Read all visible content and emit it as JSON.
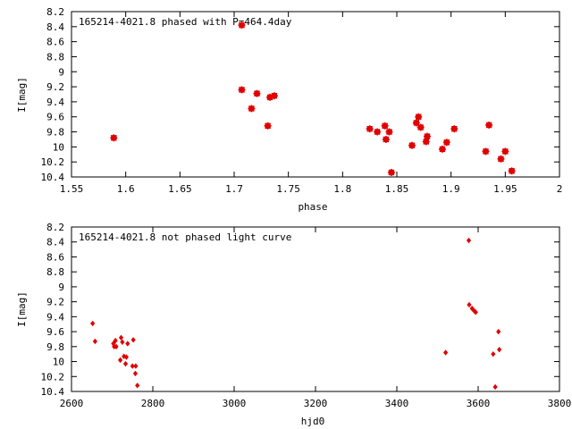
{
  "chart_data": [
    {
      "type": "scatter",
      "title": "165214-4021.8 phased with P=464.4day",
      "xlabel": "phase",
      "ylabel": "I[mag]",
      "xlim": [
        1.55,
        2.0
      ],
      "ylim": [
        10.4,
        8.2
      ],
      "y_inverted": true,
      "marker": "star",
      "color": "#e00000",
      "xticks": [
        "1.55",
        "1.6",
        "1.65",
        "1.7",
        "1.75",
        "1.8",
        "1.85",
        "1.9",
        "1.95",
        "2"
      ],
      "yticks": [
        "8.2",
        "8.4",
        "8.6",
        "8.8",
        "9",
        "9.2",
        "9.4",
        "9.6",
        "9.8",
        "10",
        "10.2",
        "10.4"
      ],
      "points": [
        {
          "x": 1.589,
          "y": 9.88
        },
        {
          "x": 1.707,
          "y": 8.38
        },
        {
          "x": 1.707,
          "y": 9.24
        },
        {
          "x": 1.716,
          "y": 9.49
        },
        {
          "x": 1.721,
          "y": 9.29
        },
        {
          "x": 1.731,
          "y": 9.72
        },
        {
          "x": 1.733,
          "y": 9.34
        },
        {
          "x": 1.737,
          "y": 9.32
        },
        {
          "x": 1.825,
          "y": 9.76
        },
        {
          "x": 1.832,
          "y": 9.8
        },
        {
          "x": 1.839,
          "y": 9.72
        },
        {
          "x": 1.84,
          "y": 9.9
        },
        {
          "x": 1.843,
          "y": 9.8
        },
        {
          "x": 1.845,
          "y": 10.34
        },
        {
          "x": 1.864,
          "y": 9.98
        },
        {
          "x": 1.868,
          "y": 9.68
        },
        {
          "x": 1.87,
          "y": 9.6
        },
        {
          "x": 1.872,
          "y": 9.74
        },
        {
          "x": 1.877,
          "y": 9.93
        },
        {
          "x": 1.878,
          "y": 9.86
        },
        {
          "x": 1.892,
          "y": 10.03
        },
        {
          "x": 1.896,
          "y": 9.94
        },
        {
          "x": 1.903,
          "y": 9.76
        },
        {
          "x": 1.932,
          "y": 10.06
        },
        {
          "x": 1.935,
          "y": 9.71
        },
        {
          "x": 1.946,
          "y": 10.16
        },
        {
          "x": 1.95,
          "y": 10.06
        },
        {
          "x": 1.956,
          "y": 10.32
        }
      ]
    },
    {
      "type": "scatter",
      "title": "165214-4021.8 not phased light curve",
      "xlabel": "hjd0",
      "ylabel": "I[mag]",
      "xlim": [
        2600,
        3800
      ],
      "ylim": [
        10.4,
        8.2
      ],
      "y_inverted": true,
      "marker": "diamond",
      "color": "#e00000",
      "xticks": [
        "2600",
        "2800",
        "3000",
        "3200",
        "3400",
        "3600",
        "3800"
      ],
      "yticks": [
        "8.2",
        "8.4",
        "8.6",
        "8.8",
        "9",
        "9.2",
        "9.4",
        "9.6",
        "9.8",
        "10",
        "10.2",
        "10.4"
      ],
      "points": [
        {
          "x": 2652,
          "y": 9.49
        },
        {
          "x": 2658,
          "y": 9.73
        },
        {
          "x": 2703,
          "y": 9.76
        },
        {
          "x": 2705,
          "y": 9.8
        },
        {
          "x": 2708,
          "y": 9.72
        },
        {
          "x": 2710,
          "y": 9.8
        },
        {
          "x": 2720,
          "y": 9.98
        },
        {
          "x": 2722,
          "y": 9.68
        },
        {
          "x": 2725,
          "y": 9.74
        },
        {
          "x": 2729,
          "y": 9.93
        },
        {
          "x": 2733,
          "y": 10.03
        },
        {
          "x": 2735,
          "y": 9.94
        },
        {
          "x": 2738,
          "y": 9.76
        },
        {
          "x": 2750,
          "y": 10.06
        },
        {
          "x": 2752,
          "y": 9.71
        },
        {
          "x": 2757,
          "y": 10.16
        },
        {
          "x": 2758,
          "y": 10.06
        },
        {
          "x": 2762,
          "y": 10.32
        },
        {
          "x": 3520,
          "y": 9.88
        },
        {
          "x": 3577,
          "y": 8.38
        },
        {
          "x": 3578,
          "y": 9.24
        },
        {
          "x": 3585,
          "y": 9.29
        },
        {
          "x": 3590,
          "y": 9.32
        },
        {
          "x": 3594,
          "y": 9.34
        },
        {
          "x": 3637,
          "y": 9.9
        },
        {
          "x": 3642,
          "y": 10.34
        },
        {
          "x": 3650,
          "y": 9.6
        },
        {
          "x": 3652,
          "y": 9.84
        }
      ]
    }
  ]
}
